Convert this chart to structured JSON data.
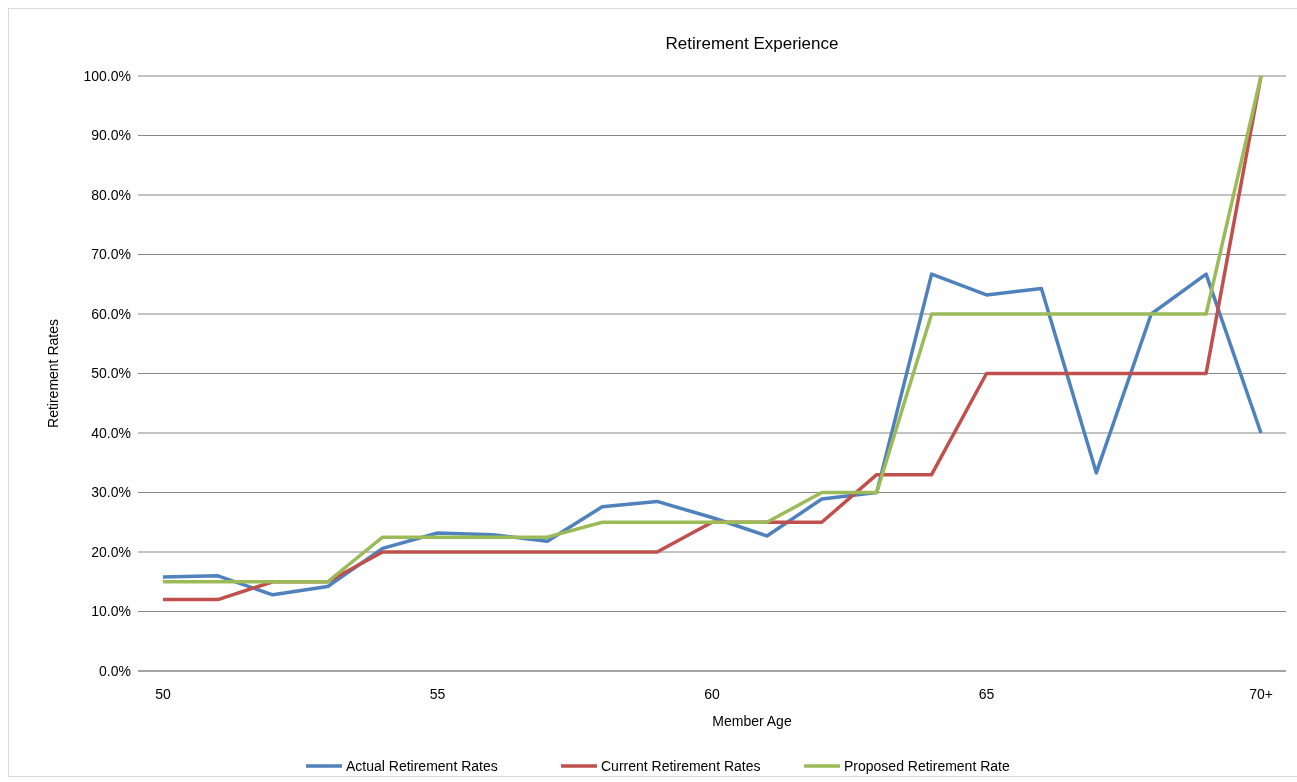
{
  "chart_data": {
    "type": "line",
    "title": "Retirement Experience",
    "xlabel": "Member Age",
    "ylabel": "Retirement Rates",
    "categories": [
      "50",
      null,
      null,
      null,
      null,
      "55",
      null,
      null,
      null,
      null,
      "60",
      null,
      null,
      null,
      null,
      "65",
      null,
      null,
      null,
      null,
      "70+"
    ],
    "series": [
      {
        "name": "Actual Retirement Rates",
        "color": "#4f81bd",
        "values": [
          15.8,
          16.0,
          12.8,
          14.2,
          20.6,
          23.2,
          22.9,
          21.8,
          27.6,
          28.5,
          25.8,
          22.7,
          28.9,
          30.0,
          66.7,
          63.2,
          64.3,
          33.3,
          60.0,
          66.7,
          40.0
        ]
      },
      {
        "name": "Current Retirement Rates",
        "color": "#c0504d",
        "values": [
          12,
          12,
          15,
          15,
          20,
          20,
          20,
          20,
          20,
          20,
          25,
          25,
          25,
          33,
          33,
          50,
          50,
          50,
          50,
          50,
          100
        ]
      },
      {
        "name": "Proposed Retirement Rate",
        "color": "#9bbb59",
        "values": [
          15,
          15,
          15,
          15,
          22.5,
          22.5,
          22.5,
          22.5,
          25,
          25,
          25,
          25,
          30,
          30,
          60,
          60,
          60,
          60,
          60,
          60,
          100
        ]
      }
    ],
    "ylim": [
      0,
      100
    ],
    "yticks": [
      {
        "value": 0,
        "label": "0.0%"
      },
      {
        "value": 10,
        "label": "10.0%"
      },
      {
        "value": 20,
        "label": "20.0%"
      },
      {
        "value": 30,
        "label": "30.0%"
      },
      {
        "value": 40,
        "label": "40.0%"
      },
      {
        "value": 50,
        "label": "50.0%"
      },
      {
        "value": 60,
        "label": "60.0%"
      },
      {
        "value": 70,
        "label": "70.0%"
      },
      {
        "value": 80,
        "label": "80.0%"
      },
      {
        "value": 90,
        "label": "90.0%"
      },
      {
        "value": 100,
        "label": "100.0%"
      }
    ],
    "grid": "y",
    "legend": "bottom",
    "marker": "none",
    "line_style": "solid"
  }
}
